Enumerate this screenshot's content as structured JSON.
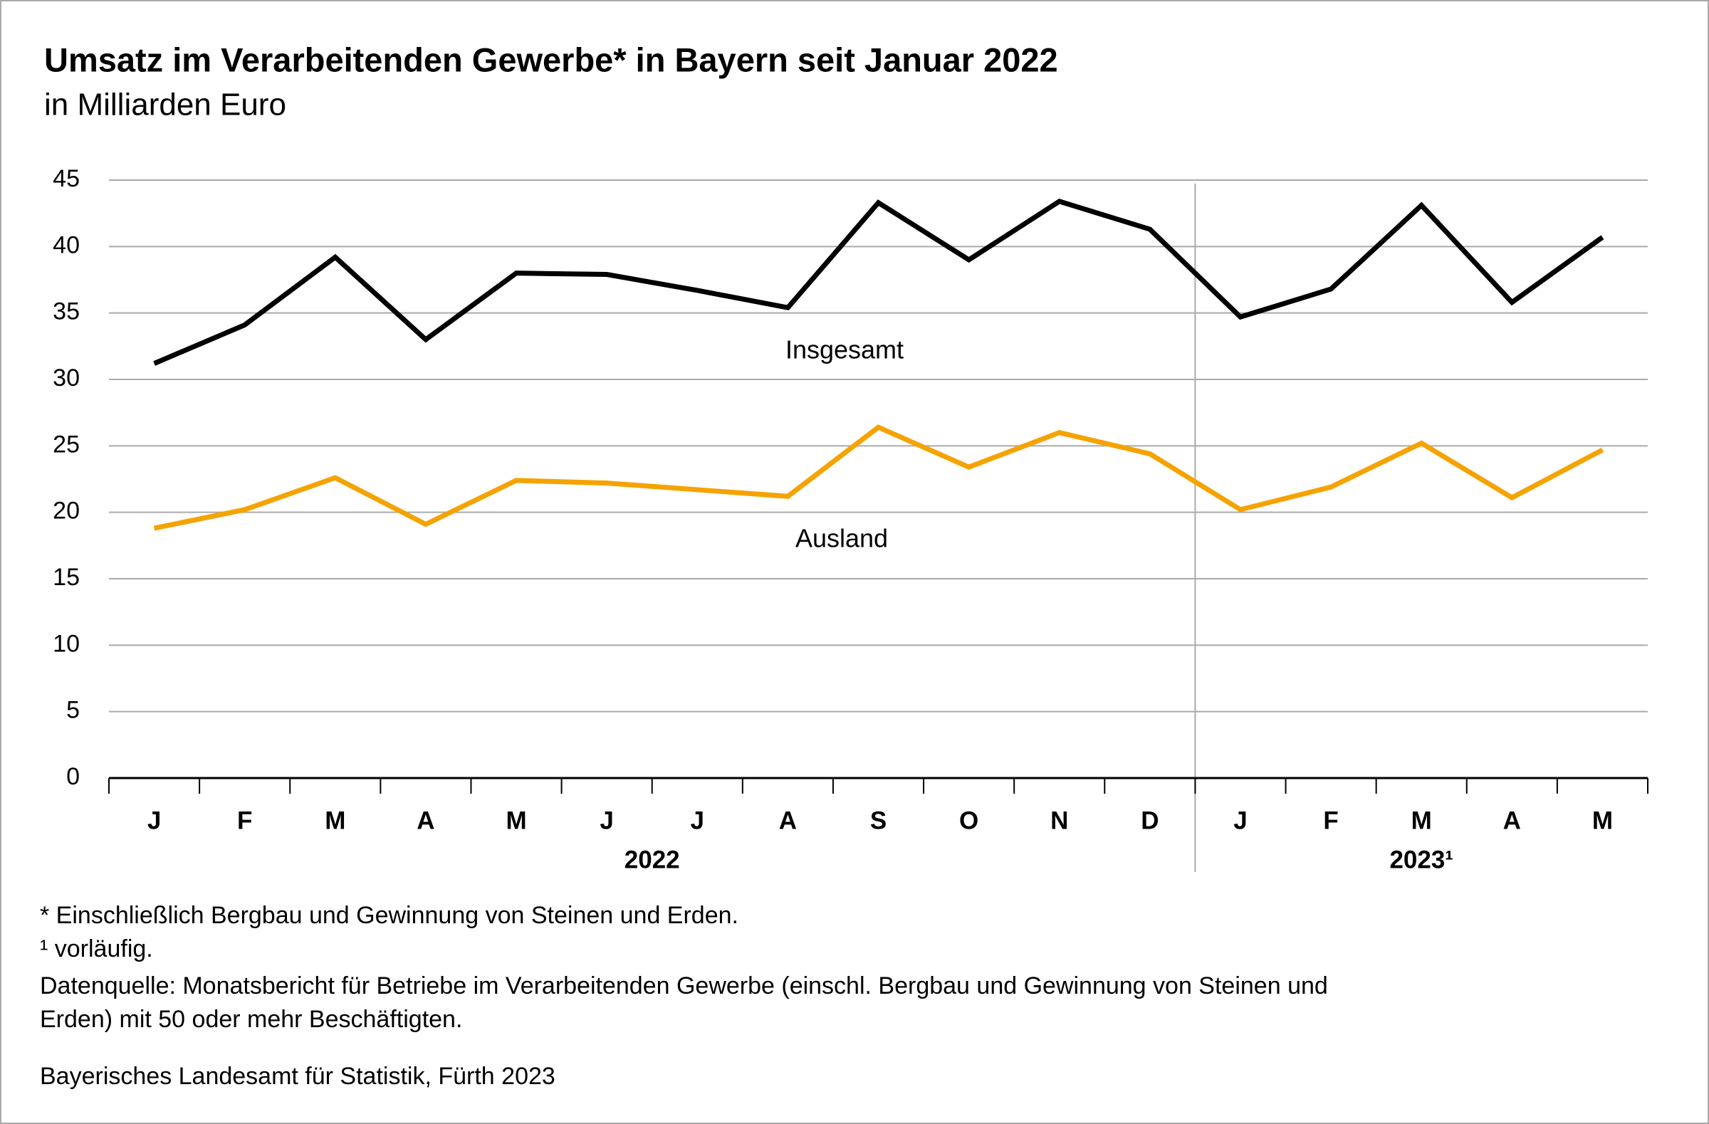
{
  "chart_data": {
    "type": "line",
    "title": "Umsatz im Verarbeitenden Gewerbe* in Bayern seit Januar 2022",
    "subtitle": "in Milliarden Euro",
    "categories": [
      "J",
      "F",
      "M",
      "A",
      "M",
      "J",
      "J",
      "A",
      "S",
      "O",
      "N",
      "D",
      "J",
      "F",
      "M",
      "A",
      "M"
    ],
    "year_labels": [
      "2022",
      "2023¹"
    ],
    "series": [
      {
        "name": "Insgesamt",
        "color": "#000000",
        "values": [
          31.2,
          34.1,
          39.2,
          33.0,
          38.0,
          37.9,
          36.7,
          35.4,
          43.3,
          39.0,
          43.4,
          41.3,
          34.7,
          36.8,
          43.1,
          35.8,
          40.7
        ]
      },
      {
        "name": "Ausland",
        "color": "#f5a300",
        "values": [
          18.8,
          20.2,
          22.6,
          19.1,
          22.4,
          22.2,
          21.7,
          21.2,
          26.4,
          23.4,
          26.0,
          24.4,
          20.2,
          21.9,
          25.2,
          21.1,
          24.7
        ]
      }
    ],
    "ylim": [
      0,
      45
    ],
    "yticks": [
      0,
      5,
      10,
      15,
      20,
      25,
      30,
      35,
      40,
      45
    ],
    "grid": true,
    "footnotes": [
      "* Einschließlich Bergbau und Gewinnung von Steinen und Erden.",
      "¹  vorläufig.",
      "Datenquelle: Monatsbericht für Betriebe im Verarbeitenden Gewerbe (einschl. Bergbau und Gewinnung von Steinen und",
      "Erden) mit 50 oder mehr Beschäftigten."
    ],
    "source": "Bayerisches Landesamt für Statistik, Fürth 2023"
  }
}
